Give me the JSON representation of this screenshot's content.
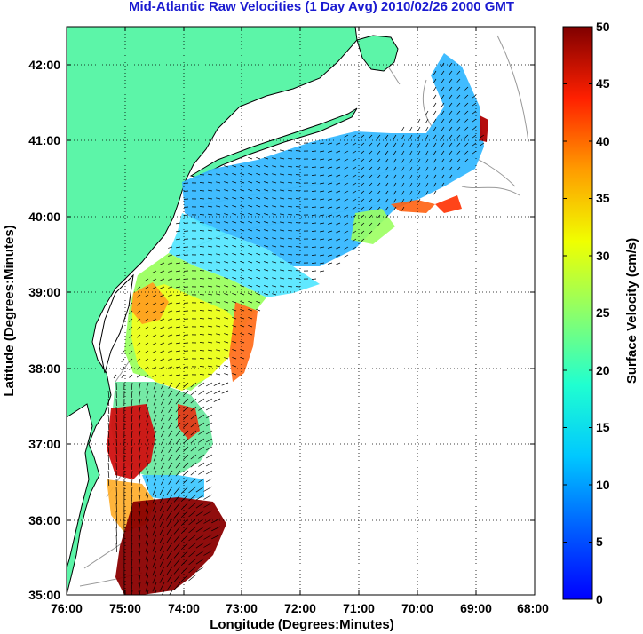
{
  "title": "Mid-Atlantic Raw Velocities (1 Day Avg) 2010/02/26 2000 GMT",
  "xlabel": "Longitude (Degrees:Minutes)",
  "ylabel": "Latitude (Degrees:Minutes)",
  "colorbar_label": "Surface Velocity (cm/s)",
  "x_ticks": [
    "76:00",
    "75:00",
    "74:00",
    "73:00",
    "72:00",
    "71:00",
    "70:00",
    "69:00",
    "68:00"
  ],
  "y_ticks": [
    "42:00",
    "41:00",
    "40:00",
    "39:00",
    "38:00",
    "37:00",
    "36:00",
    "35:00"
  ],
  "colorbar_ticks": [
    "50",
    "45",
    "40",
    "35",
    "30",
    "25",
    "20",
    "15",
    "10",
    "5",
    "0"
  ],
  "colors": {
    "land": "#5cf5a8",
    "water": "#ffffff",
    "coast": "#000000",
    "bathymetry": "#999999",
    "grid": "#000000",
    "title": "#1a1ad0"
  },
  "chart_data": {
    "type": "heatmap",
    "xlim": [
      -76,
      -68
    ],
    "ylim": [
      35,
      42.5
    ],
    "clim": [
      0,
      50
    ],
    "colormap": "jet",
    "grid": true,
    "legend": "right colorbar"
  }
}
